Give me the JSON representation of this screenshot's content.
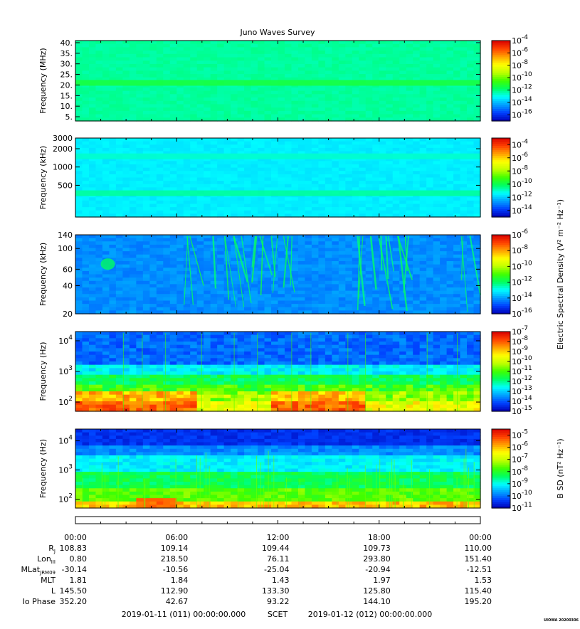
{
  "title": "Juno Waves Survey",
  "stamp": "UIOWA 20200306",
  "colors": {
    "scale": [
      "#0000b4",
      "#0040ff",
      "#00a0ff",
      "#00ffff",
      "#00ff60",
      "#40ff00",
      "#c0ff00",
      "#ffff00",
      "#ffa000",
      "#ff4000",
      "#d80000"
    ]
  },
  "chart_data": [
    {
      "type": "heatmap",
      "id": "panel1",
      "ylabel": "Frequency (MHz)",
      "yscale": "linear",
      "ylim": [
        3,
        41
      ],
      "yticks": [
        {
          "v": 5,
          "t": "5."
        },
        {
          "v": 10,
          "t": "10."
        },
        {
          "v": 15,
          "t": "15."
        },
        {
          "v": 20,
          "t": "20."
        },
        {
          "v": 25,
          "t": "25."
        },
        {
          "v": 30,
          "t": "30."
        },
        {
          "v": 35,
          "t": "35."
        },
        {
          "v": 40,
          "t": "40."
        }
      ],
      "colorbar": {
        "range": [
          -17,
          -4
        ],
        "ticks": [
          -4,
          -6,
          -8,
          -10,
          -12,
          -14,
          -16
        ]
      },
      "bands": [
        {
          "y": 21,
          "value": -11.3
        }
      ],
      "background": -12.3,
      "features": "uniform"
    },
    {
      "type": "heatmap",
      "id": "panel2",
      "ylabel": "Frequency (kHz)",
      "yscale": "log",
      "ylim": [
        150,
        3000
      ],
      "yticks": [
        {
          "v": 500,
          "t": "500"
        },
        {
          "v": 1000,
          "t": "1000"
        },
        {
          "v": 2000,
          "t": "2000"
        },
        {
          "v": 3000,
          "t": "3000"
        }
      ],
      "colorbar": {
        "range": [
          -15,
          -3
        ],
        "ticks": [
          -4,
          -6,
          -8,
          -10,
          -12,
          -14
        ]
      },
      "bands": [
        {
          "y": 370,
          "value": -10.6
        },
        {
          "y": 1500,
          "value": -11
        }
      ],
      "background": -11.6,
      "features": "uniform"
    },
    {
      "type": "heatmap",
      "id": "panel3",
      "ylabel": "Frequency (kHz)",
      "yscale": "log",
      "ylim": [
        20,
        140
      ],
      "yticks": [
        {
          "v": 20,
          "t": "20"
        },
        {
          "v": 40,
          "t": "40"
        },
        {
          "v": 60,
          "t": "60"
        },
        {
          "v": 100,
          "t": "100"
        },
        {
          "v": 140,
          "t": "140"
        }
      ],
      "colorbar": {
        "range": [
          -16,
          -6
        ],
        "ticks": [
          -6,
          -8,
          -10,
          -12,
          -14,
          -16
        ]
      },
      "colorbar_label": "Electric Spectral Density (V² m⁻² Hz⁻¹)",
      "background": -14.2,
      "features": "streaks"
    },
    {
      "type": "heatmap",
      "id": "panel4",
      "ylabel": "Frequency (Hz)",
      "yscale": "log",
      "ylim": [
        50,
        20000
      ],
      "yticks": [
        {
          "v": 100,
          "t": "10",
          "e": "2"
        },
        {
          "v": 1000,
          "t": "10",
          "e": "3"
        },
        {
          "v": 10000,
          "t": "10",
          "e": "4"
        }
      ],
      "colorbar": {
        "range": [
          -15,
          -7
        ],
        "ticks": [
          -7,
          -8,
          -9,
          -10,
          -11,
          -12,
          -13,
          -14,
          -15
        ]
      },
      "features": "efield_lf"
    },
    {
      "type": "heatmap",
      "id": "panel5",
      "ylabel": "Frequency (Hz)",
      "yscale": "log",
      "ylim": [
        50,
        25000
      ],
      "yticks": [
        {
          "v": 100,
          "t": "10",
          "e": "2"
        },
        {
          "v": 1000,
          "t": "10",
          "e": "3"
        },
        {
          "v": 10000,
          "t": "10",
          "e": "4"
        }
      ],
      "colorbar": {
        "range": [
          -11,
          -4.5
        ],
        "ticks": [
          -5,
          -6,
          -7,
          -8,
          -9,
          -10,
          -11
        ]
      },
      "colorbar_label": "B SD (nT² Hz⁻¹)",
      "features": "bfield"
    }
  ],
  "time_axis": {
    "ticks": [
      "00:00",
      "06:00",
      "12:00",
      "18:00",
      "00:00"
    ]
  },
  "ephemeris": [
    {
      "label": "R",
      "sub": "J",
      "values": [
        "108.83",
        "109.14",
        "109.44",
        "109.73",
        "110.00"
      ]
    },
    {
      "label": "Lon",
      "sub": "III",
      "values": [
        "0.80",
        "218.50",
        "76.11",
        "293.80",
        "151.40"
      ]
    },
    {
      "label": "MLat",
      "sub": "JRM09",
      "values": [
        "-30.14",
        "-10.56",
        "-25.04",
        "-20.94",
        "-12.51"
      ]
    },
    {
      "label": "MLT",
      "sub": "",
      "values": [
        "1.81",
        "1.84",
        "1.43",
        "1.97",
        "1.53"
      ]
    },
    {
      "label": "L",
      "sub": "",
      "values": [
        "145.50",
        "112.90",
        "133.30",
        "125.80",
        "115.40"
      ]
    },
    {
      "label": "Io Phase",
      "sub": "",
      "values": [
        "352.20",
        "42.67",
        "93.22",
        "144.10",
        "195.20"
      ]
    }
  ],
  "footer": {
    "start": "2019-01-11 (011) 00:00:00.000",
    "mid": "SCET",
    "end": "2019-01-12 (012) 00:00:00.000"
  }
}
